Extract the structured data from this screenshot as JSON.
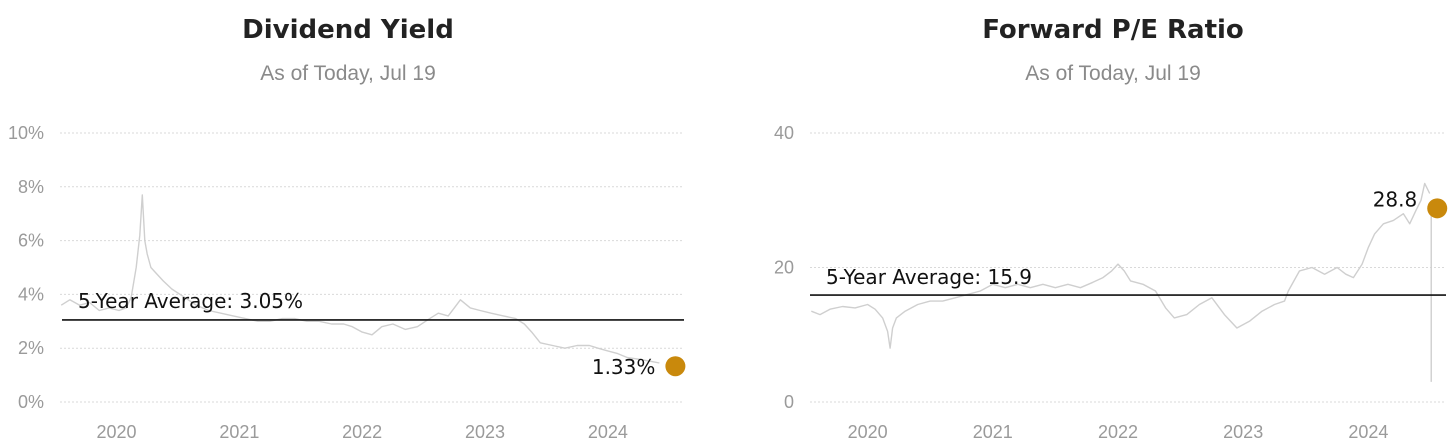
{
  "colors": {
    "line": "#cfcfcf",
    "grid": "#d9d9d9",
    "average": "#111111",
    "marker": "#c9890c"
  },
  "chart_data": [
    {
      "type": "line",
      "title": "Dividend Yield",
      "subtitle": "As of Today, Jul 19",
      "y_unit": "%",
      "ylim": [
        0,
        10
      ],
      "y_ticks": [
        0,
        2,
        4,
        6,
        8,
        10
      ],
      "y_tick_labels": [
        "0%",
        "2%",
        "4%",
        "6%",
        "8%",
        "10%"
      ],
      "x_ticks": [
        2020,
        2021,
        2022,
        2023,
        2024
      ],
      "x_tick_labels": [
        "2020",
        "2021",
        "2022",
        "2023",
        "2024"
      ],
      "xlim": [
        2019.54,
        2024.62
      ],
      "grid": true,
      "average": {
        "label": "5-Year Average: 3.05%",
        "value": 3.05
      },
      "latest": {
        "label": "1.33%",
        "x": 2024.55,
        "value": 1.33
      },
      "series": [
        {
          "x": [
            2019.55,
            2019.62,
            2019.7,
            2019.78,
            2019.86,
            2019.94,
            2020.02,
            2020.08,
            2020.12,
            2020.16,
            2020.19,
            2020.21,
            2020.23,
            2020.25,
            2020.28,
            2020.32,
            2020.38,
            2020.45,
            2020.55,
            2020.65,
            2020.75,
            2020.85,
            2020.95,
            2021.05,
            2021.15,
            2021.25,
            2021.35,
            2021.45,
            2021.55,
            2021.65,
            2021.75,
            2021.85,
            2021.92,
            2022.0,
            2022.08,
            2022.16,
            2022.25,
            2022.35,
            2022.45,
            2022.55,
            2022.62,
            2022.7,
            2022.75,
            2022.8,
            2022.88,
            2022.96,
            2023.05,
            2023.15,
            2023.25,
            2023.32,
            2023.38,
            2023.45,
            2023.55,
            2023.65,
            2023.75,
            2023.85,
            2023.92,
            2024.0,
            2024.08,
            2024.16,
            2024.24,
            2024.3,
            2024.36,
            2024.42
          ],
          "values": [
            3.6,
            3.8,
            3.6,
            3.7,
            3.4,
            3.5,
            3.4,
            3.5,
            3.9,
            5.0,
            6.2,
            7.7,
            6.0,
            5.5,
            5.0,
            4.8,
            4.5,
            4.2,
            3.9,
            3.6,
            3.4,
            3.3,
            3.2,
            3.1,
            3.0,
            3.0,
            3.1,
            3.1,
            3.0,
            3.0,
            2.9,
            2.9,
            2.8,
            2.6,
            2.5,
            2.8,
            2.9,
            2.7,
            2.8,
            3.1,
            3.3,
            3.2,
            3.5,
            3.8,
            3.5,
            3.4,
            3.3,
            3.2,
            3.1,
            2.9,
            2.6,
            2.2,
            2.1,
            2.0,
            2.1,
            2.1,
            2.0,
            1.9,
            1.8,
            1.65,
            1.6,
            1.55,
            1.5,
            1.45
          ]
        }
      ]
    },
    {
      "type": "line",
      "title": "Forward P/E Ratio",
      "subtitle": "As of Today, Jul 19",
      "y_unit": "",
      "ylim": [
        0,
        40
      ],
      "y_ticks": [
        0,
        20,
        40
      ],
      "y_tick_labels": [
        "0",
        "20",
        "40"
      ],
      "x_ticks": [
        2020,
        2021,
        2022,
        2023,
        2024
      ],
      "x_tick_labels": [
        "2020",
        "2021",
        "2022",
        "2023",
        "2024"
      ],
      "xlim": [
        2019.54,
        2024.62
      ],
      "grid": true,
      "average": {
        "label": "5-Year Average: 15.9",
        "value": 15.9
      },
      "latest": {
        "label": "28.8",
        "x": 2024.55,
        "value": 28.8
      },
      "series": [
        {
          "x": [
            2019.55,
            2019.62,
            2019.7,
            2019.8,
            2019.9,
            2020.0,
            2020.06,
            2020.12,
            2020.16,
            2020.18,
            2020.2,
            2020.23,
            2020.3,
            2020.4,
            2020.5,
            2020.6,
            2020.7,
            2020.8,
            2020.9,
            2021.0,
            2021.1,
            2021.2,
            2021.3,
            2021.4,
            2021.5,
            2021.6,
            2021.7,
            2021.8,
            2021.88,
            2021.95,
            2022.0,
            2022.05,
            2022.1,
            2022.2,
            2022.3,
            2022.38,
            2022.45,
            2022.55,
            2022.65,
            2022.75,
            2022.85,
            2022.95,
            2023.05,
            2023.15,
            2023.25,
            2023.33,
            2023.36,
            2023.45,
            2023.55,
            2023.65,
            2023.75,
            2023.82,
            2023.88,
            2023.95,
            2024.0,
            2024.05,
            2024.12,
            2024.2,
            2024.28,
            2024.33,
            2024.38,
            2024.42,
            2024.45,
            2024.49
          ],
          "values": [
            13.5,
            13.0,
            13.8,
            14.2,
            14.0,
            14.5,
            13.8,
            12.5,
            10.5,
            8.0,
            11.0,
            12.5,
            13.5,
            14.5,
            15.0,
            15.0,
            15.5,
            16.0,
            16.5,
            17.5,
            17.0,
            17.5,
            17.0,
            17.5,
            17.0,
            17.5,
            17.0,
            17.8,
            18.5,
            19.5,
            20.5,
            19.5,
            18.0,
            17.5,
            16.5,
            14.0,
            12.5,
            13.0,
            14.5,
            15.5,
            13.0,
            11.0,
            12.0,
            13.5,
            14.5,
            15.0,
            16.5,
            19.5,
            20.0,
            19.0,
            20.0,
            19.0,
            18.5,
            20.5,
            23.0,
            25.0,
            26.5,
            27.0,
            28.0,
            26.5,
            28.5,
            30.0,
            32.5,
            31.0
          ]
        }
      ]
    }
  ]
}
